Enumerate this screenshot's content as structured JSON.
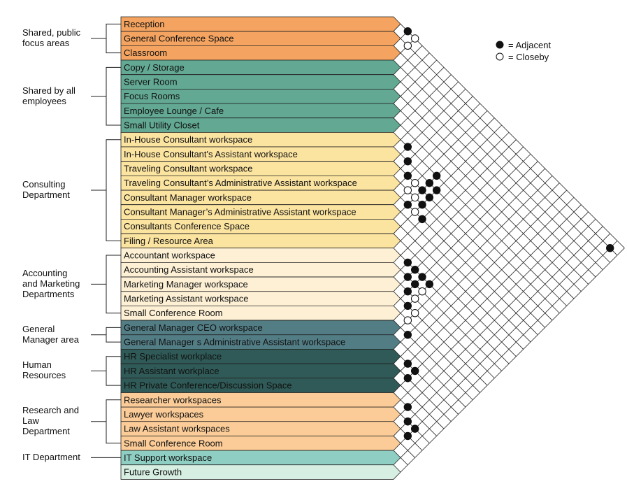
{
  "legend": {
    "adjacent_label": "= Adjacent",
    "closeby_label": "= Closeby"
  },
  "groups": [
    {
      "label": "Shared, public\nfocus areas",
      "start": 0,
      "end": 2
    },
    {
      "label": "Shared by all\nemployees",
      "start": 3,
      "end": 7
    },
    {
      "label": "Consulting\nDepartment",
      "start": 8,
      "end": 15
    },
    {
      "label": "Accounting\nand Marketing\nDepartments",
      "start": 16,
      "end": 20
    },
    {
      "label": "General\nManager area",
      "start": 21,
      "end": 22
    },
    {
      "label": "Human\nResources",
      "start": 23,
      "end": 25
    },
    {
      "label": "Research and\nLaw\nDepartment",
      "start": 26,
      "end": 29
    },
    {
      "label": "IT Department",
      "start": 30,
      "end": 30
    }
  ],
  "colors": {
    "shared_public": "#f4a460",
    "shared_employees": "#62a892",
    "consulting": "#fbe3a0",
    "accounting": "#fdf0d5",
    "general_manager": "#537d85",
    "hr": "#2f5a57",
    "research": "#fbcc98",
    "it": "#8fcfc3",
    "future": "#d7eee3"
  },
  "rows": [
    {
      "label": "Reception",
      "color": "#f4a460"
    },
    {
      "label": "General Conference Space",
      "color": "#f4a460"
    },
    {
      "label": "Classroom",
      "color": "#f4a460"
    },
    {
      "label": "Copy / Storage",
      "color": "#62a892"
    },
    {
      "label": "Server Room",
      "color": "#62a892"
    },
    {
      "label": "Focus Rooms",
      "color": "#62a892"
    },
    {
      "label": "Employee Lounge / Cafe",
      "color": "#62a892"
    },
    {
      "label": "Small Utility Closet",
      "color": "#62a892"
    },
    {
      "label": "In-House Consultant workspace",
      "color": "#fbe3a0"
    },
    {
      "label": "In-House Consultant's Assistant workspace",
      "color": "#fbe3a0"
    },
    {
      "label": "Traveling Consultant workspace",
      "color": "#fbe3a0"
    },
    {
      "label": "Traveling Consultant’s Administrative Assistant workspace",
      "color": "#fbe3a0"
    },
    {
      "label": "Consultant Manager workspace",
      "color": "#fbe3a0"
    },
    {
      "label": "Consultant Manager’s Administrative Assistant workspace",
      "color": "#fbe3a0"
    },
    {
      "label": "Consultants Conference Space",
      "color": "#fbe3a0"
    },
    {
      "label": "Filing / Resource Area",
      "color": "#fbe3a0"
    },
    {
      "label": "Accountant workspace",
      "color": "#fdf0d5"
    },
    {
      "label": "Accounting Assistant workspace",
      "color": "#fdf0d5"
    },
    {
      "label": "Marketing Manager workspace",
      "color": "#fdf0d5"
    },
    {
      "label": "Marketing Assistant workspace",
      "color": "#fdf0d5"
    },
    {
      "label": "Small Conference Room",
      "color": "#fdf0d5"
    },
    {
      "label": "General Manager CEO workspace",
      "color": "#537d85"
    },
    {
      "label": "General Manager s Administrative Assistant workspace",
      "color": "#537d85"
    },
    {
      "label": "HR Specialist workplace",
      "color": "#2f5a57"
    },
    {
      "label": "HR Assistant workplace",
      "color": "#2f5a57"
    },
    {
      "label": "HR Private Conference/Discussion Space",
      "color": "#2f5a57"
    },
    {
      "label": "Researcher workspaces",
      "color": "#fbcc98"
    },
    {
      "label": "Lawyer workspaces",
      "color": "#fbcc98"
    },
    {
      "label": "Law Assistant workspaces",
      "color": "#fbcc98"
    },
    {
      "label": "Small Conference Room",
      "color": "#fbcc98"
    },
    {
      "label": "IT Support workspace",
      "color": "#8fcfc3"
    },
    {
      "label": "Future Growth",
      "color": "#d7eee3"
    }
  ],
  "relationships": [
    {
      "a": 0,
      "b": 1,
      "type": "adjacent"
    },
    {
      "a": 0,
      "b": 2,
      "type": "closeby"
    },
    {
      "a": 1,
      "b": 2,
      "type": "closeby"
    },
    {
      "a": 8,
      "b": 9,
      "type": "adjacent"
    },
    {
      "a": 9,
      "b": 10,
      "type": "adjacent"
    },
    {
      "a": 10,
      "b": 11,
      "type": "adjacent"
    },
    {
      "a": 8,
      "b": 13,
      "type": "adjacent"
    },
    {
      "a": 9,
      "b": 13,
      "type": "adjacent"
    },
    {
      "a": 9,
      "b": 14,
      "type": "adjacent"
    },
    {
      "a": 10,
      "b": 13,
      "type": "adjacent"
    },
    {
      "a": 10,
      "b": 14,
      "type": "adjacent"
    },
    {
      "a": 10,
      "b": 12,
      "type": "closeby"
    },
    {
      "a": 11,
      "b": 12,
      "type": "closeby"
    },
    {
      "a": 11,
      "b": 13,
      "type": "closeby"
    },
    {
      "a": 11,
      "b": 14,
      "type": "adjacent"
    },
    {
      "a": 12,
      "b": 13,
      "type": "adjacent"
    },
    {
      "a": 12,
      "b": 14,
      "type": "closeby"
    },
    {
      "a": 12,
      "b": 15,
      "type": "adjacent"
    },
    {
      "a": 16,
      "b": 17,
      "type": "adjacent"
    },
    {
      "a": 16,
      "b": 18,
      "type": "adjacent"
    },
    {
      "a": 17,
      "b": 18,
      "type": "adjacent"
    },
    {
      "a": 17,
      "b": 19,
      "type": "adjacent"
    },
    {
      "a": 18,
      "b": 19,
      "type": "adjacent"
    },
    {
      "a": 16,
      "b": 19,
      "type": "adjacent"
    },
    {
      "a": 16,
      "b": 20,
      "type": "adjacent"
    },
    {
      "a": 17,
      "b": 20,
      "type": "closeby"
    },
    {
      "a": 18,
      "b": 20,
      "type": "closeby"
    },
    {
      "a": 19,
      "b": 20,
      "type": "adjacent"
    },
    {
      "a": 20,
      "b": 21,
      "type": "closeby"
    },
    {
      "a": 19,
      "b": 21,
      "type": "closeby"
    },
    {
      "a": 21,
      "b": 22,
      "type": "adjacent"
    },
    {
      "a": 23,
      "b": 24,
      "type": "adjacent"
    },
    {
      "a": 23,
      "b": 25,
      "type": "adjacent"
    },
    {
      "a": 24,
      "b": 25,
      "type": "adjacent"
    },
    {
      "a": 26,
      "b": 27,
      "type": "adjacent"
    },
    {
      "a": 27,
      "b": 28,
      "type": "adjacent"
    },
    {
      "a": 27,
      "b": 29,
      "type": "adjacent"
    },
    {
      "a": 28,
      "b": 29,
      "type": "adjacent"
    },
    {
      "a": 1,
      "b": 30,
      "type": "adjacent"
    }
  ]
}
